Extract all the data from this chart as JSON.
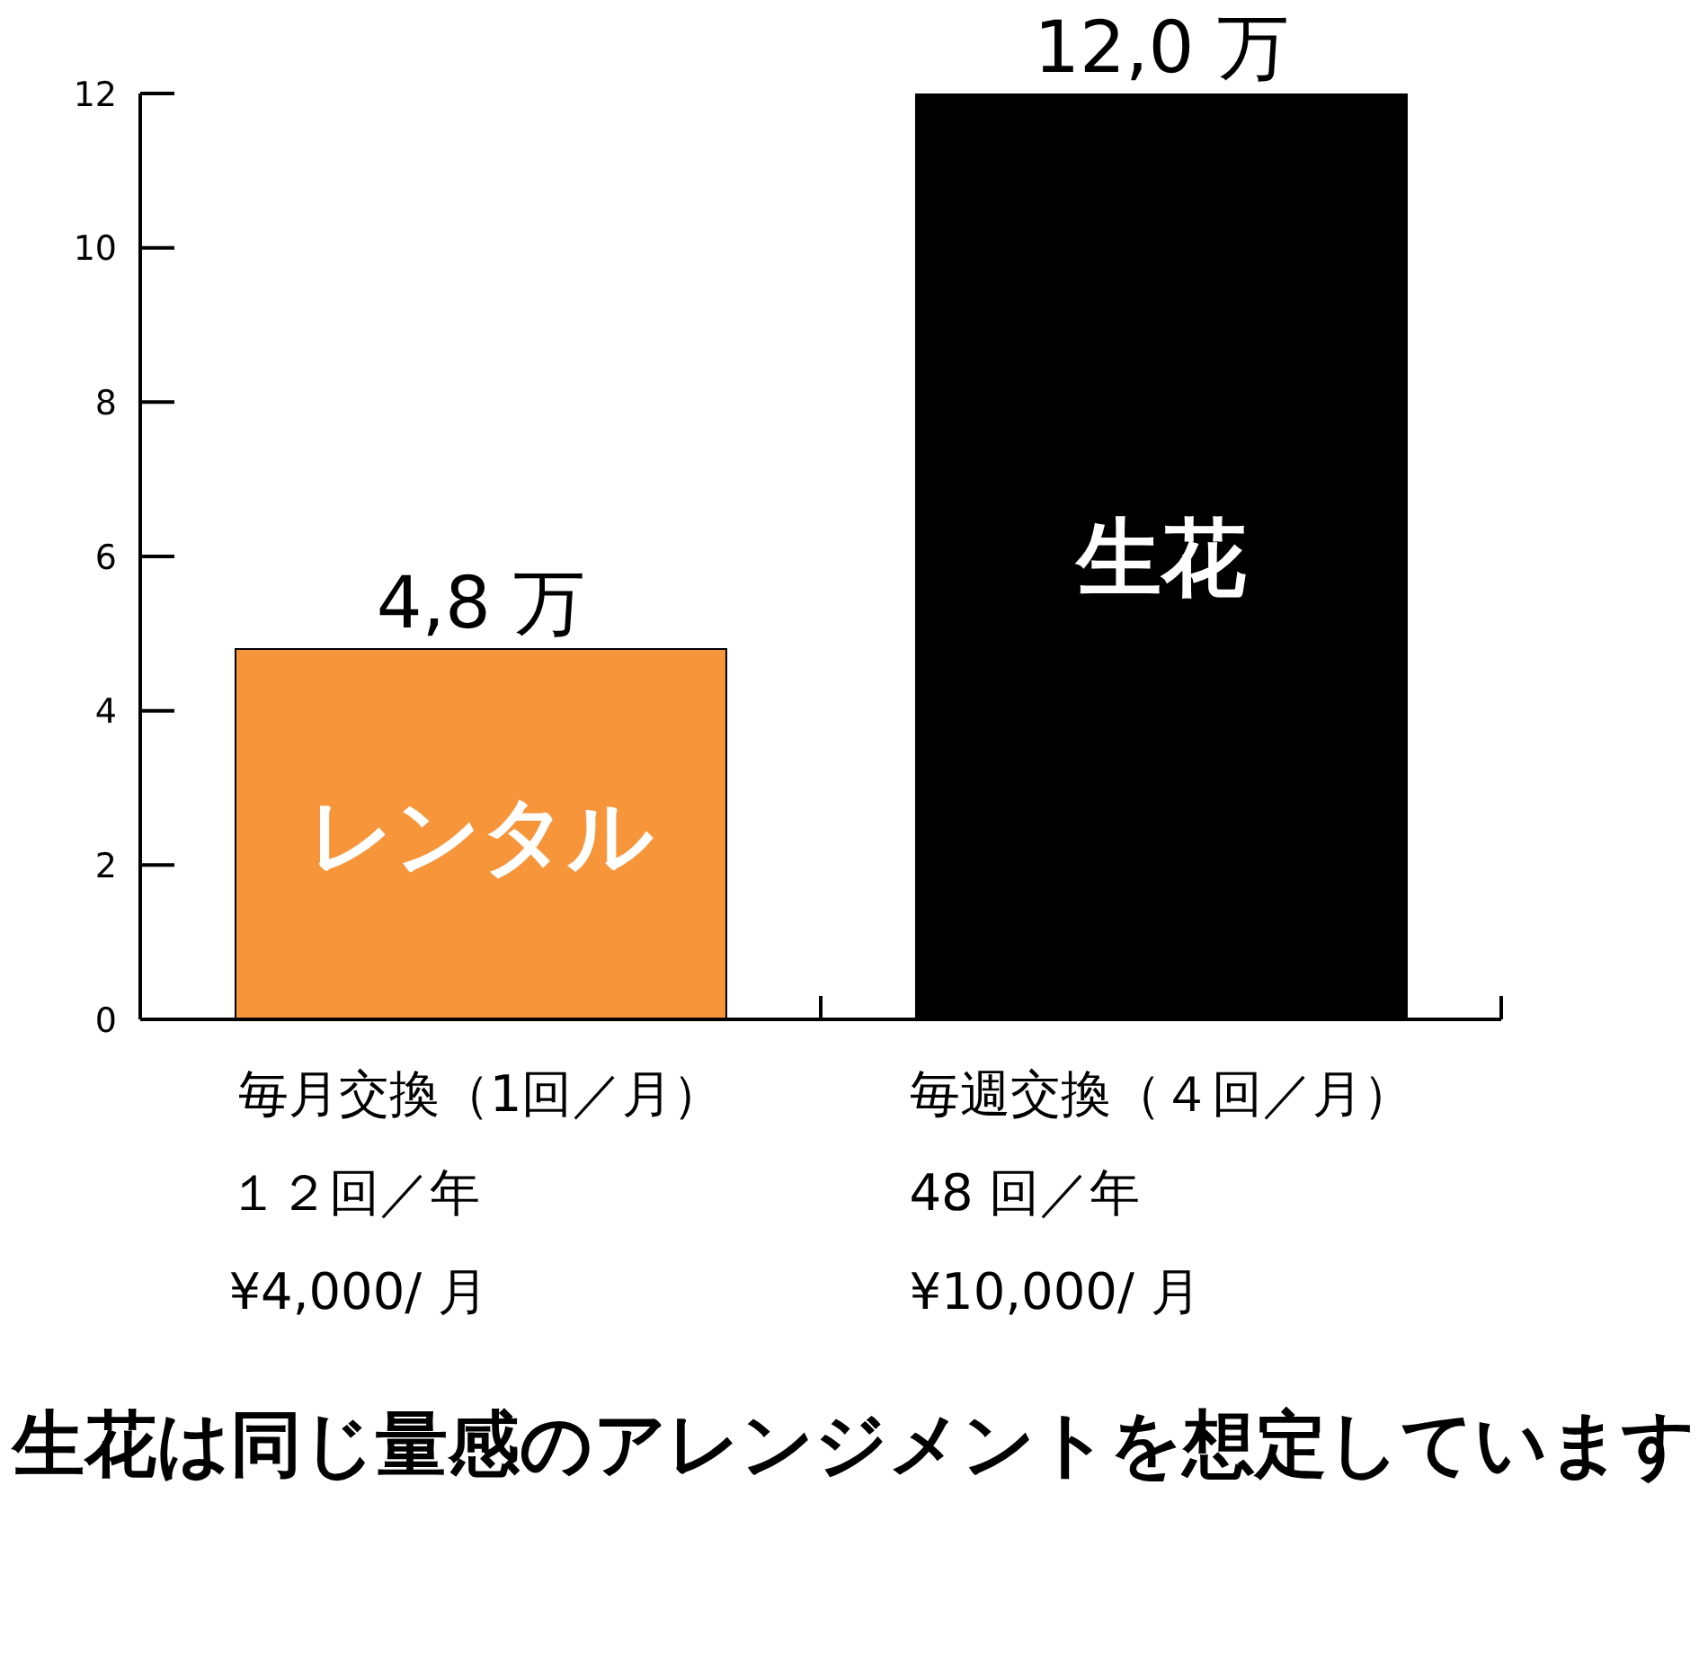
{
  "chart_data": {
    "type": "bar",
    "categories": [
      "毎月交換（1回／月）",
      "毎週交換（４回／月）"
    ],
    "series": [
      {
        "name": "レンタル",
        "color": "#f7953a",
        "values": [
          4.8,
          null
        ],
        "value_labels": [
          "4,8 万",
          null
        ]
      },
      {
        "name": "生花",
        "color": "#000000",
        "values": [
          null,
          12.0
        ],
        "value_labels": [
          null,
          "12,0 万"
        ]
      }
    ],
    "stacked": true,
    "ylim": [
      0,
      12
    ],
    "yticks": [
      0,
      2,
      4,
      6,
      8,
      10,
      12
    ],
    "annotations": [
      "１２回／年",
      "¥4,000/ 月",
      "48 回／年",
      "¥10,000/ 月",
      "生花は同じ量感のアレンジメントを想定しています"
    ]
  }
}
